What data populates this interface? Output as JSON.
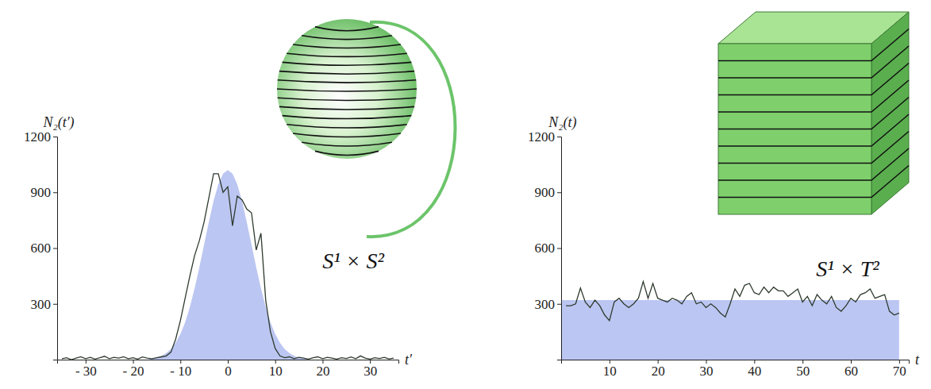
{
  "chart_data": [
    {
      "type": "line",
      "y_label": "N₂(t′)",
      "x_label": "t′",
      "annotation": "S¹ × S²",
      "xlim": [
        -36,
        36
      ],
      "ylim": [
        0,
        1200
      ],
      "xticks": [
        {
          "value": -30,
          "label": "- 30"
        },
        {
          "value": -20,
          "label": "- 20"
        },
        {
          "value": -10,
          "label": "- 10"
        },
        0,
        10,
        20,
        30
      ],
      "yticks": [
        300,
        600,
        900,
        1200
      ],
      "series": [
        {
          "type": "area",
          "color": "#b0bcf0",
          "x": [
            -35,
            -34,
            -33,
            -32,
            -31,
            -30,
            -29,
            -28,
            -27,
            -26,
            -25,
            -24,
            -23,
            -22,
            -21,
            -20,
            -19,
            -18,
            -17,
            -16,
            -15,
            -14,
            -13,
            -12,
            -11,
            -10,
            -9,
            -8,
            -7,
            -6,
            -5,
            -4,
            -3,
            -2,
            -1,
            0,
            1,
            2,
            3,
            4,
            5,
            6,
            7,
            8,
            9,
            10,
            11,
            12,
            13,
            14,
            15,
            16,
            17,
            18,
            19,
            20,
            21,
            22,
            23,
            24,
            25,
            26,
            27,
            28,
            29,
            30,
            31,
            32,
            33,
            34,
            35
          ],
          "values": [
            0,
            0,
            0,
            0,
            0,
            0,
            0,
            0,
            0,
            0,
            0,
            0,
            0,
            0,
            0,
            0,
            0,
            0,
            0,
            6,
            11,
            20,
            35,
            57,
            91,
            138,
            201,
            283,
            383,
            496,
            619,
            740,
            854,
            943,
            1000,
            1020,
            1000,
            943,
            854,
            740,
            619,
            496,
            383,
            283,
            201,
            138,
            91,
            57,
            35,
            20,
            11,
            6,
            0,
            0,
            0,
            0,
            0,
            0,
            0,
            0,
            0,
            0,
            0,
            0,
            0,
            0,
            0,
            0,
            0,
            0,
            0
          ]
        },
        {
          "type": "line",
          "color": "#2e3a2e",
          "x": [
            -35,
            -34,
            -33,
            -32,
            -31,
            -30,
            -29,
            -28,
            -27,
            -26,
            -25,
            -24,
            -23,
            -22,
            -21,
            -20,
            -19,
            -18,
            -17,
            -16,
            -15,
            -14,
            -13,
            -12,
            -11,
            -10,
            -9,
            -8,
            -7,
            -6,
            -5,
            -4,
            -3,
            -2,
            -1,
            0,
            1,
            2,
            3,
            4,
            5,
            6,
            7,
            8,
            9,
            10,
            11,
            12,
            13,
            14,
            15,
            16,
            17,
            18,
            19,
            20,
            21,
            22,
            23,
            24,
            25,
            26,
            27,
            28,
            29,
            30,
            31,
            32,
            33,
            34,
            35
          ],
          "values": [
            5,
            10,
            0,
            8,
            15,
            5,
            12,
            3,
            10,
            18,
            5,
            12,
            8,
            15,
            5,
            10,
            3,
            14,
            8,
            5,
            10,
            15,
            20,
            40,
            110,
            210,
            330,
            450,
            560,
            640,
            740,
            870,
            1000,
            1000,
            900,
            930,
            720,
            880,
            860,
            810,
            790,
            590,
            680,
            320,
            150,
            60,
            20,
            10,
            15,
            5,
            12,
            8,
            3,
            10,
            15,
            5,
            12,
            8,
            3,
            10,
            6,
            14,
            5,
            20,
            8,
            3,
            10,
            6,
            12,
            4,
            8
          ]
        }
      ]
    },
    {
      "type": "line",
      "y_label": "N₂(t)",
      "x_label": "t",
      "annotation": "S¹ × T²",
      "xlim": [
        0,
        72
      ],
      "ylim": [
        0,
        1200
      ],
      "xticks": [
        10,
        20,
        30,
        40,
        50,
        60,
        70
      ],
      "yticks": [
        300,
        600,
        900,
        1200
      ],
      "series": [
        {
          "type": "area",
          "color": "#b0bcf0",
          "x": [
            0,
            70
          ],
          "values": [
            320,
            320
          ]
        },
        {
          "type": "line",
          "color": "#2e3a2e",
          "x": [
            1,
            2,
            3,
            4,
            5,
            6,
            7,
            8,
            9,
            10,
            11,
            12,
            13,
            14,
            15,
            16,
            17,
            18,
            19,
            20,
            21,
            22,
            23,
            24,
            25,
            26,
            27,
            28,
            29,
            30,
            31,
            32,
            33,
            34,
            35,
            36,
            37,
            38,
            39,
            40,
            41,
            42,
            43,
            44,
            45,
            46,
            47,
            48,
            49,
            50,
            51,
            52,
            53,
            54,
            55,
            56,
            57,
            58,
            59,
            60,
            61,
            62,
            63,
            64,
            65,
            66,
            67,
            68,
            69,
            70
          ],
          "values": [
            290,
            290,
            300,
            385,
            310,
            280,
            320,
            290,
            240,
            210,
            310,
            330,
            300,
            280,
            300,
            330,
            420,
            330,
            410,
            330,
            320,
            310,
            330,
            320,
            300,
            340,
            360,
            300,
            310,
            280,
            300,
            280,
            250,
            230,
            300,
            380,
            340,
            400,
            410,
            360,
            350,
            390,
            360,
            390,
            370,
            370,
            340,
            360,
            380,
            310,
            340,
            290,
            350,
            320,
            300,
            340,
            280,
            260,
            290,
            330,
            310,
            350,
            360,
            380,
            330,
            340,
            350,
            260,
            240,
            250
          ]
        }
      ]
    }
  ]
}
